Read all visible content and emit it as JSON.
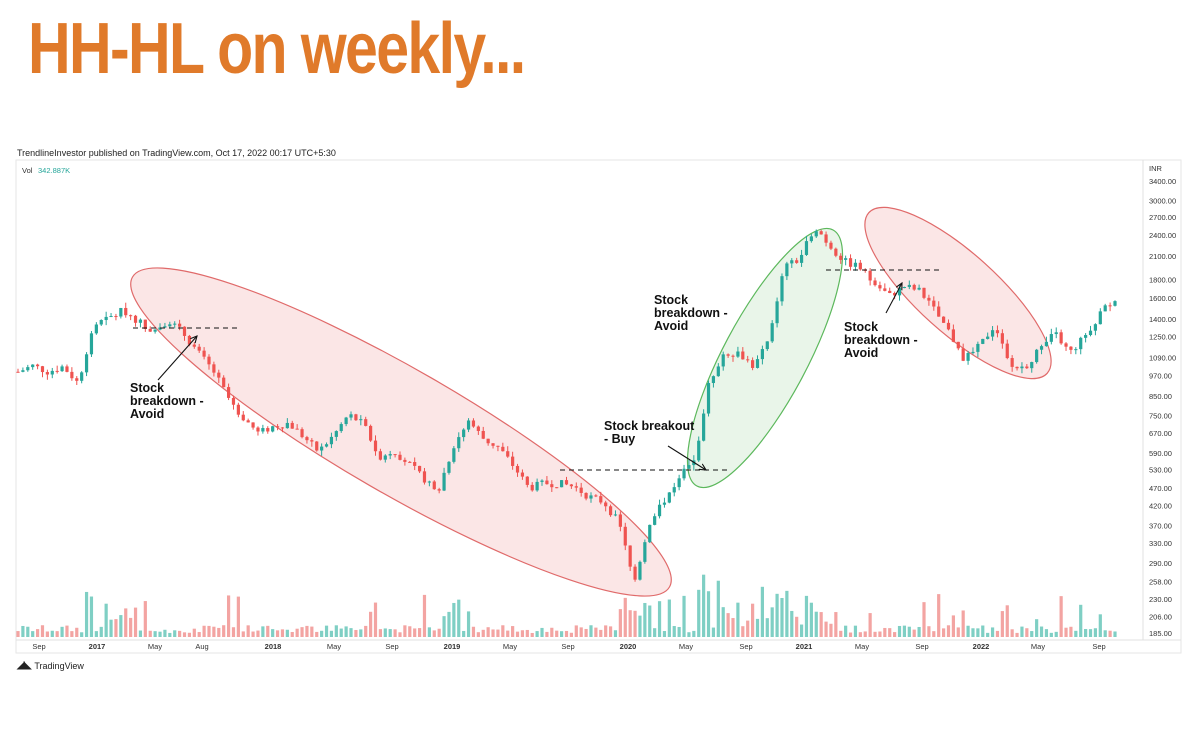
{
  "headline": "HH-HL on weekly...",
  "publisher": "TrendlineInvestor published on TradingView.com, Oct 17, 2022 00:17 UTC+5:30",
  "brand": "TradingView",
  "colors": {
    "headline": "#e07a2a",
    "up": "#26a69a",
    "down": "#ef5350",
    "volUp": "#7fcfc4",
    "volDown": "#f3a4a2",
    "redZone": "#fbe6e6",
    "redStroke": "#e06a6a",
    "greenZone": "#e9f5e9",
    "greenStroke": "#5cb85c"
  },
  "chart_data": {
    "type": "candlestick",
    "currency": "INR",
    "volume_label": "Vol",
    "volume_value": "342.887K",
    "y_scale": "log",
    "y_ticks": [
      "3400.00",
      "3000.00",
      "2700.00",
      "2400.00",
      "2100.00",
      "1800.00",
      "1600.00",
      "1400.00",
      "1250.00",
      "1090.00",
      "970.00",
      "850.00",
      "750.00",
      "670.00",
      "590.00",
      "530.00",
      "470.00",
      "420.00",
      "370.00",
      "330.00",
      "290.00",
      "258.00",
      "230.00",
      "206.00",
      "185.00"
    ],
    "x_ticks": [
      {
        "label": "Sep",
        "year": false
      },
      {
        "label": "2017",
        "year": true
      },
      {
        "label": "May",
        "year": false
      },
      {
        "label": "Aug",
        "year": false
      },
      {
        "label": "2018",
        "year": true
      },
      {
        "label": "May",
        "year": false
      },
      {
        "label": "Sep",
        "year": false
      },
      {
        "label": "2019",
        "year": true
      },
      {
        "label": "May",
        "year": false
      },
      {
        "label": "Sep",
        "year": false
      },
      {
        "label": "2020",
        "year": true
      },
      {
        "label": "May",
        "year": false
      },
      {
        "label": "Sep",
        "year": false
      },
      {
        "label": "2021",
        "year": true
      },
      {
        "label": "May",
        "year": false
      },
      {
        "label": "Sep",
        "year": false
      },
      {
        "label": "2022",
        "year": true
      },
      {
        "label": "May",
        "year": false
      },
      {
        "label": "Sep",
        "year": false
      }
    ],
    "price_path": [
      [
        1020,
        970
      ],
      [
        1030,
        1040
      ],
      [
        960,
        1030
      ],
      [
        1000,
        1060
      ],
      [
        900,
        950
      ],
      [
        1380,
        1300
      ],
      [
        1300,
        1500
      ],
      [
        1360,
        1600
      ],
      [
        1380,
        1380
      ],
      [
        1310,
        1280
      ],
      [
        1480,
        1300
      ],
      [
        1200,
        1350
      ],
      [
        1100,
        1150
      ],
      [
        950,
        1050
      ],
      [
        810,
        870
      ],
      [
        720,
        760
      ],
      [
        660,
        680
      ],
      [
        700,
        700
      ],
      [
        690,
        740
      ],
      [
        650,
        660
      ],
      [
        580,
        610
      ],
      [
        620,
        700
      ],
      [
        680,
        830
      ],
      [
        720,
        700
      ],
      [
        560,
        590
      ],
      [
        600,
        600
      ],
      [
        540,
        560
      ],
      [
        460,
        540
      ],
      [
        480,
        460
      ],
      [
        520,
        720
      ],
      [
        690,
        760
      ],
      [
        640,
        650
      ],
      [
        600,
        620
      ],
      [
        510,
        570
      ],
      [
        460,
        480
      ],
      [
        490,
        480
      ],
      [
        470,
        500
      ],
      [
        470,
        480
      ],
      [
        420,
        470
      ],
      [
        400,
        460
      ],
      [
        350,
        400
      ],
      [
        250,
        260
      ],
      [
        330,
        420
      ],
      [
        420,
        450
      ],
      [
        480,
        530
      ],
      [
        560,
        560
      ],
      [
        820,
        1050
      ],
      [
        1050,
        1200
      ],
      [
        1150,
        1100
      ],
      [
        1000,
        1050
      ],
      [
        1200,
        1250
      ],
      [
        1900,
        2000
      ],
      [
        2100,
        2000
      ],
      [
        2400,
        2700
      ],
      [
        2300,
        2200
      ],
      [
        2000,
        2050
      ],
      [
        1900,
        2000
      ],
      [
        1700,
        1800
      ],
      [
        1600,
        1650
      ],
      [
        1700,
        1750
      ],
      [
        1650,
        1700
      ],
      [
        1450,
        1500
      ],
      [
        1250,
        1300
      ],
      [
        1050,
        1100
      ],
      [
        1150,
        1200
      ],
      [
        1300,
        1400
      ],
      [
        1050,
        1000
      ],
      [
        1000,
        1050
      ],
      [
        1100,
        1200
      ],
      [
        1250,
        1300
      ],
      [
        1100,
        1150
      ],
      [
        1200,
        1300
      ],
      [
        1400,
        1500
      ],
      [
        1600,
        1600
      ]
    ],
    "annotations": [
      {
        "text": [
          "Stock",
          "breakdown -",
          "Avoid"
        ]
      },
      {
        "text": [
          "Stock",
          "breakdown -",
          "Avoid"
        ]
      },
      {
        "text": [
          "Stock",
          "breakdown -",
          "Avoid"
        ]
      },
      {
        "text": [
          "Stock breakout",
          "- Buy"
        ]
      }
    ]
  }
}
